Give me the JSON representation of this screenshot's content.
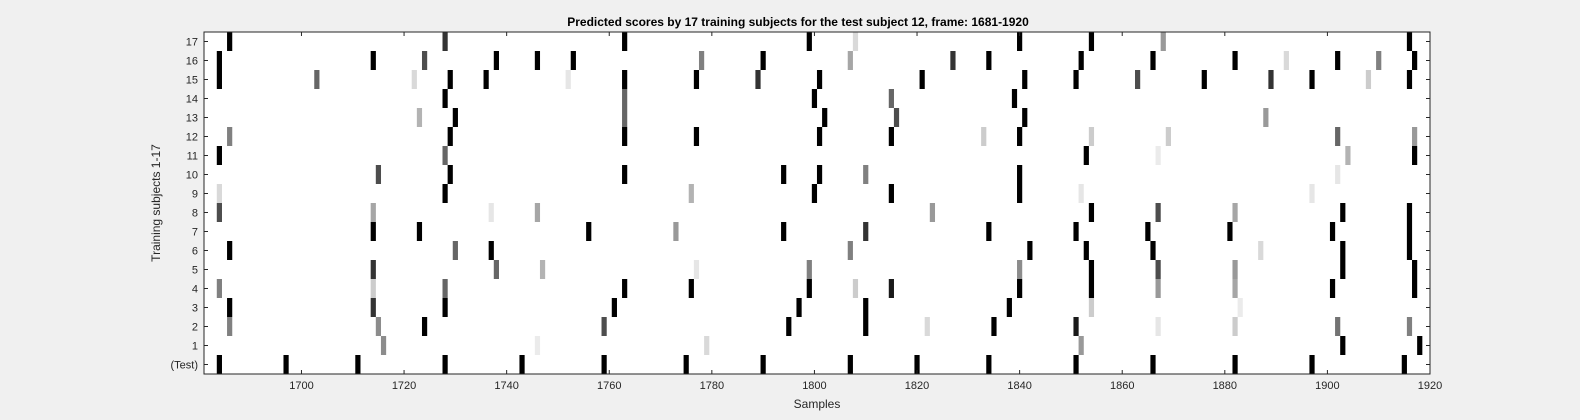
{
  "chart_data": {
    "type": "heatmap",
    "title": "Predicted scores by 17 training subjects for the test subject 12, frame: 1681-1920",
    "xlabel": "Samples",
    "ylabel": "Training subjects 1-17",
    "xlim": [
      1681,
      1920
    ],
    "x_ticks": [
      1700,
      1720,
      1740,
      1760,
      1780,
      1800,
      1820,
      1840,
      1860,
      1880,
      1900,
      1920
    ],
    "rows": [
      "(Test)",
      "1",
      "2",
      "3",
      "4",
      "5",
      "6",
      "7",
      "8",
      "9",
      "10",
      "11",
      "12",
      "13",
      "14",
      "15",
      "16",
      "17"
    ],
    "background_color": "#ffffff",
    "figure_color": "#f0f0f0",
    "colormap": "gray (1 = black, 0 = white)",
    "score_marks": [
      {
        "row": "(Test)",
        "marks": [
          [
            1684,
            1
          ],
          [
            1697,
            1
          ],
          [
            1711,
            1
          ],
          [
            1728,
            1
          ],
          [
            1743,
            1
          ],
          [
            1759,
            1
          ],
          [
            1775,
            1
          ],
          [
            1790,
            1
          ],
          [
            1807,
            1
          ],
          [
            1820,
            1
          ],
          [
            1834,
            1
          ],
          [
            1851,
            1
          ],
          [
            1866,
            1
          ],
          [
            1882,
            1
          ],
          [
            1897,
            1
          ],
          [
            1915,
            1
          ]
        ]
      },
      {
        "row": "1",
        "marks": [
          [
            1716,
            0.45
          ],
          [
            1746,
            0.08
          ],
          [
            1779,
            0.15
          ],
          [
            1852,
            0.4
          ],
          [
            1903,
            1
          ],
          [
            1918,
            1
          ]
        ]
      },
      {
        "row": "2",
        "marks": [
          [
            1686,
            0.5
          ],
          [
            1715,
            0.45
          ],
          [
            1724,
            1
          ],
          [
            1759,
            0.7
          ],
          [
            1795,
            1
          ],
          [
            1810,
            1
          ],
          [
            1822,
            0.15
          ],
          [
            1835,
            1
          ],
          [
            1851,
            0.9
          ],
          [
            1867,
            0.1
          ],
          [
            1882,
            0.2
          ],
          [
            1902,
            0.55
          ],
          [
            1916,
            0.5
          ]
        ]
      },
      {
        "row": "3",
        "marks": [
          [
            1686,
            1
          ],
          [
            1714,
            0.8
          ],
          [
            1728,
            1
          ],
          [
            1761,
            1
          ],
          [
            1797,
            1
          ],
          [
            1810,
            1
          ],
          [
            1838,
            1
          ],
          [
            1854,
            0.2
          ],
          [
            1883,
            0.08
          ]
        ]
      },
      {
        "row": "4",
        "marks": [
          [
            1684,
            0.5
          ],
          [
            1714,
            0.2
          ],
          [
            1728,
            0.6
          ],
          [
            1763,
            1
          ],
          [
            1776,
            1
          ],
          [
            1799,
            1
          ],
          [
            1808,
            0.2
          ],
          [
            1815,
            0.9
          ],
          [
            1840,
            1
          ],
          [
            1854,
            1
          ],
          [
            1867,
            0.4
          ],
          [
            1882,
            0.35
          ],
          [
            1901,
            1
          ],
          [
            1917,
            1
          ]
        ]
      },
      {
        "row": "5",
        "marks": [
          [
            1714,
            0.8
          ],
          [
            1738,
            0.6
          ],
          [
            1747,
            0.3
          ],
          [
            1777,
            0.1
          ],
          [
            1799,
            0.5
          ],
          [
            1840,
            0.45
          ],
          [
            1854,
            1
          ],
          [
            1867,
            0.7
          ],
          [
            1882,
            0.4
          ],
          [
            1903,
            1
          ],
          [
            1917,
            1
          ]
        ]
      },
      {
        "row": "6",
        "marks": [
          [
            1686,
            1
          ],
          [
            1730,
            0.6
          ],
          [
            1737,
            1
          ],
          [
            1807,
            0.5
          ],
          [
            1842,
            1
          ],
          [
            1853,
            1
          ],
          [
            1866,
            1
          ],
          [
            1887,
            0.15
          ],
          [
            1903,
            1
          ],
          [
            1916,
            1
          ]
        ]
      },
      {
        "row": "7",
        "marks": [
          [
            1714,
            1
          ],
          [
            1723,
            1
          ],
          [
            1756,
            1
          ],
          [
            1773,
            0.4
          ],
          [
            1794,
            1
          ],
          [
            1810,
            0.8
          ],
          [
            1834,
            1
          ],
          [
            1851,
            1
          ],
          [
            1865,
            1
          ],
          [
            1881,
            1
          ],
          [
            1901,
            1
          ],
          [
            1916,
            1
          ]
        ]
      },
      {
        "row": "8",
        "marks": [
          [
            1684,
            0.7
          ],
          [
            1714,
            0.35
          ],
          [
            1737,
            0.1
          ],
          [
            1746,
            0.35
          ],
          [
            1823,
            0.4
          ],
          [
            1854,
            1
          ],
          [
            1867,
            0.7
          ],
          [
            1882,
            0.35
          ],
          [
            1903,
            1
          ],
          [
            1916,
            1
          ]
        ]
      },
      {
        "row": "9",
        "marks": [
          [
            1684,
            0.15
          ],
          [
            1728,
            1
          ],
          [
            1776,
            0.3
          ],
          [
            1800,
            1
          ],
          [
            1815,
            1
          ],
          [
            1840,
            1
          ],
          [
            1852,
            0.1
          ],
          [
            1897,
            0.1
          ]
        ]
      },
      {
        "row": "10",
        "marks": [
          [
            1715,
            0.7
          ],
          [
            1729,
            1
          ],
          [
            1763,
            1
          ],
          [
            1794,
            1
          ],
          [
            1801,
            1
          ],
          [
            1810,
            0.5
          ],
          [
            1840,
            1
          ],
          [
            1902,
            0.1
          ]
        ]
      },
      {
        "row": "11",
        "marks": [
          [
            1684,
            1
          ],
          [
            1728,
            0.6
          ],
          [
            1853,
            1
          ],
          [
            1867,
            0.08
          ],
          [
            1904,
            0.3
          ],
          [
            1917,
            1
          ]
        ]
      },
      {
        "row": "12",
        "marks": [
          [
            1686,
            0.5
          ],
          [
            1729,
            1
          ],
          [
            1763,
            1
          ],
          [
            1777,
            1
          ],
          [
            1801,
            1
          ],
          [
            1815,
            1
          ],
          [
            1833,
            0.2
          ],
          [
            1840,
            1
          ],
          [
            1854,
            0.2
          ],
          [
            1869,
            0.2
          ],
          [
            1902,
            0.6
          ],
          [
            1917,
            0.4
          ]
        ]
      },
      {
        "row": "13",
        "marks": [
          [
            1723,
            0.3
          ],
          [
            1730,
            1
          ],
          [
            1763,
            0.6
          ],
          [
            1802,
            1
          ],
          [
            1816,
            0.7
          ],
          [
            1841,
            1
          ],
          [
            1888,
            0.4
          ]
        ]
      },
      {
        "row": "14",
        "marks": [
          [
            1728,
            1
          ],
          [
            1763,
            0.6
          ],
          [
            1800,
            1
          ],
          [
            1815,
            0.6
          ],
          [
            1839,
            1
          ]
        ]
      },
      {
        "row": "15",
        "marks": [
          [
            1684,
            1
          ],
          [
            1703,
            0.6
          ],
          [
            1722,
            0.15
          ],
          [
            1729,
            1
          ],
          [
            1736,
            1
          ],
          [
            1752,
            0.1
          ],
          [
            1763,
            1
          ],
          [
            1777,
            1
          ],
          [
            1789,
            0.8
          ],
          [
            1801,
            1
          ],
          [
            1821,
            1
          ],
          [
            1841,
            1
          ],
          [
            1851,
            1
          ],
          [
            1863,
            0.7
          ],
          [
            1876,
            1
          ],
          [
            1889,
            0.8
          ],
          [
            1897,
            1
          ],
          [
            1908,
            0.2
          ],
          [
            1916,
            1
          ]
        ]
      },
      {
        "row": "16",
        "marks": [
          [
            1684,
            1
          ],
          [
            1714,
            1
          ],
          [
            1724,
            0.7
          ],
          [
            1738,
            1
          ],
          [
            1746,
            1
          ],
          [
            1753,
            1
          ],
          [
            1778,
            0.5
          ],
          [
            1790,
            1
          ],
          [
            1807,
            0.35
          ],
          [
            1827,
            0.8
          ],
          [
            1834,
            1
          ],
          [
            1852,
            1
          ],
          [
            1866,
            1
          ],
          [
            1882,
            1
          ],
          [
            1892,
            0.15
          ],
          [
            1902,
            1
          ],
          [
            1910,
            0.5
          ],
          [
            1917,
            1
          ]
        ]
      },
      {
        "row": "17",
        "marks": [
          [
            1686,
            1
          ],
          [
            1728,
            0.8
          ],
          [
            1763,
            1
          ],
          [
            1799,
            1
          ],
          [
            1808,
            0.15
          ],
          [
            1840,
            1
          ],
          [
            1854,
            1
          ],
          [
            1868,
            0.4
          ],
          [
            1916,
            1
          ]
        ]
      }
    ]
  }
}
